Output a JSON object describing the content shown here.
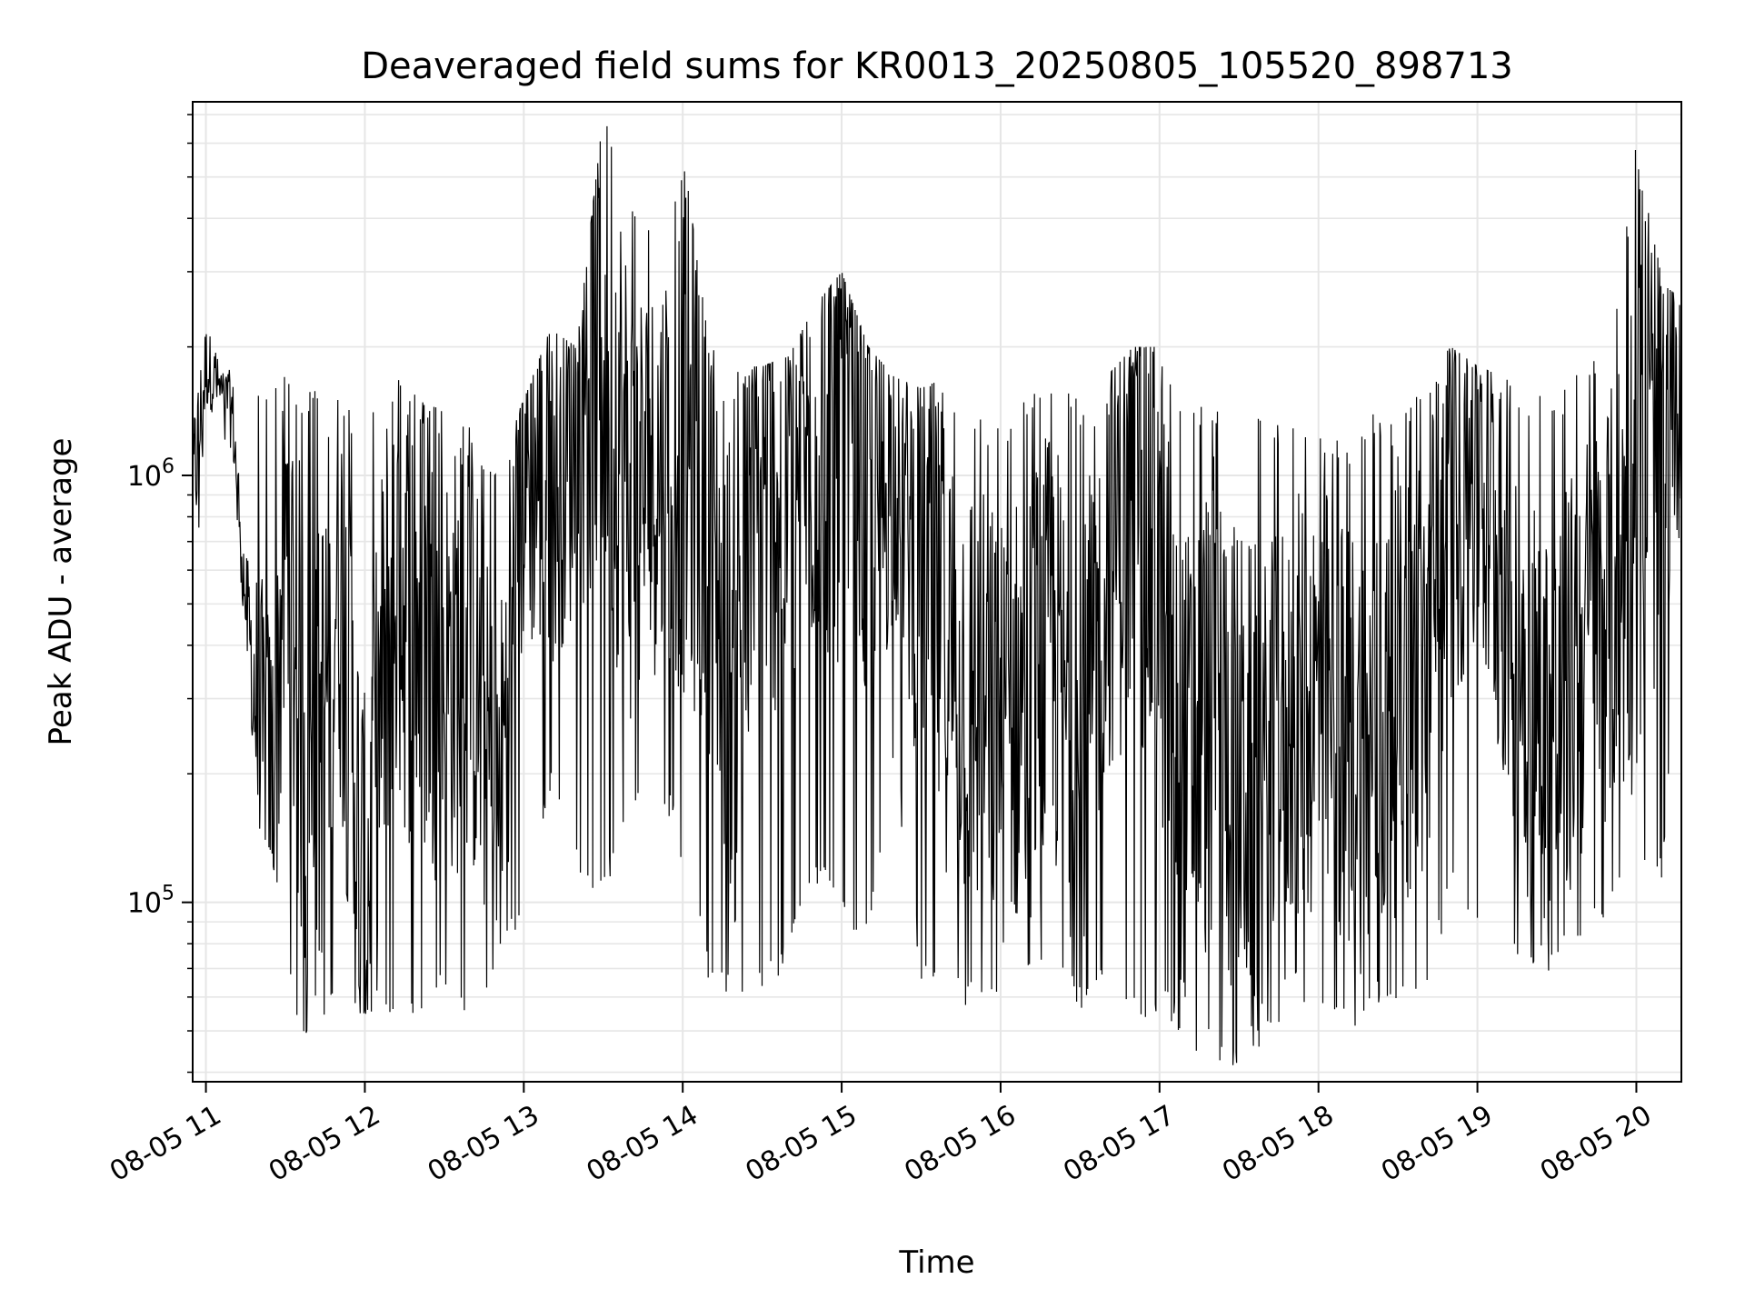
{
  "chart_data": {
    "type": "line",
    "title": "Deaveraged field sums for KR0013_20250805_105520_898713",
    "xlabel": "Time",
    "ylabel": "Peak ADU - average",
    "yscale": "log",
    "ylim": [
      38000,
      7500000
    ],
    "xlim": [
      "2025-08-05 10:55",
      "2025-08-05 20:17"
    ],
    "grid": true,
    "line_color": "#000000",
    "grid_color": "#e6e6e6",
    "x_ticks": [
      {
        "t": "2025-08-05 11:00",
        "label": "08-05 11"
      },
      {
        "t": "2025-08-05 12:00",
        "label": "08-05 12"
      },
      {
        "t": "2025-08-05 13:00",
        "label": "08-05 13"
      },
      {
        "t": "2025-08-05 14:00",
        "label": "08-05 14"
      },
      {
        "t": "2025-08-05 15:00",
        "label": "08-05 15"
      },
      {
        "t": "2025-08-05 16:00",
        "label": "08-05 16"
      },
      {
        "t": "2025-08-05 17:00",
        "label": "08-05 17"
      },
      {
        "t": "2025-08-05 18:00",
        "label": "08-05 18"
      },
      {
        "t": "2025-08-05 19:00",
        "label": "08-05 19"
      },
      {
        "t": "2025-08-05 20:00",
        "label": "08-05 20"
      }
    ],
    "y_ticks": [
      {
        "value": 100000,
        "base": "10",
        "exp": "5"
      },
      {
        "value": 1000000,
        "base": "10",
        "exp": "6"
      }
    ],
    "series": [
      {
        "x": [
          "2025-08-05 10:55",
          "2025-08-05 11:00",
          "2025-08-05 11:05",
          "2025-08-05 11:10",
          "2025-08-05 11:15",
          "2025-08-05 11:20",
          "2025-08-05 11:25",
          "2025-08-05 11:30",
          "2025-08-05 11:40",
          "2025-08-05 11:50",
          "2025-08-05 12:00",
          "2025-08-05 12:10",
          "2025-08-05 12:20",
          "2025-08-05 12:30",
          "2025-08-05 12:40",
          "2025-08-05 12:50",
          "2025-08-05 13:00",
          "2025-08-05 13:10",
          "2025-08-05 13:20",
          "2025-08-05 13:30",
          "2025-08-05 13:40",
          "2025-08-05 13:50",
          "2025-08-05 14:00",
          "2025-08-05 14:10",
          "2025-08-05 14:20",
          "2025-08-05 14:30",
          "2025-08-05 14:40",
          "2025-08-05 14:50",
          "2025-08-05 15:00",
          "2025-08-05 15:10",
          "2025-08-05 15:20",
          "2025-08-05 15:30",
          "2025-08-05 15:40",
          "2025-08-05 15:50",
          "2025-08-05 16:00",
          "2025-08-05 16:10",
          "2025-08-05 16:20",
          "2025-08-05 16:30",
          "2025-08-05 16:40",
          "2025-08-05 16:50",
          "2025-08-05 17:00",
          "2025-08-05 17:10",
          "2025-08-05 17:20",
          "2025-08-05 17:30",
          "2025-08-05 17:40",
          "2025-08-05 17:50",
          "2025-08-05 18:00",
          "2025-08-05 18:10",
          "2025-08-05 18:20",
          "2025-08-05 18:30",
          "2025-08-05 18:40",
          "2025-08-05 18:50",
          "2025-08-05 19:00",
          "2025-08-05 19:10",
          "2025-08-05 19:20",
          "2025-08-05 19:30",
          "2025-08-05 19:40",
          "2025-08-05 19:50",
          "2025-08-05 20:00",
          "2025-08-05 20:10",
          "2025-08-05 20:17"
        ],
        "y": [
          900000,
          1800000,
          1600000,
          1400000,
          500000,
          250000,
          180000,
          700000,
          150000,
          650000,
          90000,
          600000,
          450000,
          350000,
          400000,
          150000,
          1100000,
          900000,
          1300000,
          2500000,
          900000,
          1000000,
          1300000,
          800000,
          300000,
          1000000,
          900000,
          1200000,
          1300000,
          800000,
          1000000,
          600000,
          400000,
          300000,
          250000,
          300000,
          400000,
          180000,
          700000,
          900000,
          600000,
          200000,
          300000,
          200000,
          180000,
          280000,
          300000,
          250000,
          220000,
          300000,
          350000,
          900000,
          1000000,
          600000,
          300000,
          250000,
          400000,
          500000,
          800000,
          1300000,
          1400000
        ],
        "y_max": [
          1200000,
          3000000,
          1900000,
          1800000,
          800000,
          1700000,
          1700000,
          1700000,
          1600000,
          1500000,
          1400000,
          1700000,
          1600000,
          1400000,
          1300000,
          1100000,
          1500000,
          2200000,
          2000000,
          7000000,
          4500000,
          3500000,
          5800000,
          2000000,
          1800000,
          1800000,
          1900000,
          2500000,
          3000000,
          2000000,
          1700000,
          1600000,
          1700000,
          1500000,
          1300000,
          1600000,
          1700000,
          1500000,
          1700000,
          2000000,
          2000000,
          1600000,
          1500000,
          1500000,
          1400000,
          1300000,
          1300000,
          1200000,
          1500000,
          1300000,
          1700000,
          2000000,
          1800000,
          1700000,
          1500000,
          1600000,
          1800000,
          2000000,
          6000000,
          2800000,
          2600000
        ],
        "y_min": [
          350000,
          1500000,
          1300000,
          1000000,
          400000,
          150000,
          130000,
          60000,
          45000,
          55000,
          55000,
          50000,
          50000,
          60000,
          48000,
          75000,
          90000,
          180000,
          120000,
          100000,
          150000,
          200000,
          120000,
          65000,
          55000,
          60000,
          70000,
          110000,
          90000,
          75000,
          200000,
          65000,
          60000,
          55000,
          55000,
          60000,
          65000,
          55000,
          60000,
          50000,
          55000,
          45000,
          42000,
          41000,
          45000,
          60000,
          50000,
          47000,
          55000,
          60000,
          60000,
          100000,
          90000,
          70000,
          65000,
          70000,
          80000,
          95000,
          110000,
          105000,
          550000
        ]
      }
    ]
  }
}
